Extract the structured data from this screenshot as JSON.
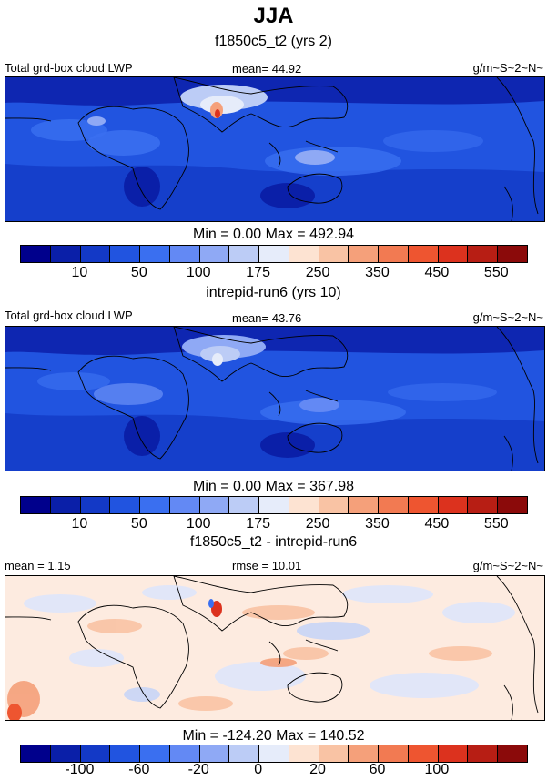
{
  "figure": {
    "title": "JJA"
  },
  "chart_data": [
    {
      "type": "heatmap",
      "title": "f1850c5_t2 (yrs 2)",
      "left_label": "Total grd-box cloud LWP",
      "center_label": "mean=  44.92",
      "right_label": "g/m~S~2~N~",
      "minmax": "Min =   0.00 Max = 492.94",
      "colorbar": {
        "colors": [
          "#00008c",
          "#0a1fa8",
          "#1339c6",
          "#2154e0",
          "#3a6ff0",
          "#6389f4",
          "#8fa9f5",
          "#bcccf6",
          "#e6ecfa",
          "#fde3d2",
          "#f9c3a4",
          "#f5a07a",
          "#f27a52",
          "#ee5530",
          "#dc321e",
          "#b71e14",
          "#8b0a0a"
        ],
        "tick_labels": [
          "10",
          "50",
          "100",
          "175",
          "250",
          "350",
          "450",
          "550"
        ]
      }
    },
    {
      "type": "heatmap",
      "title": "intrepid-run6 (yrs 10)",
      "left_label": "Total grd-box cloud LWP",
      "center_label": "mean=  43.76",
      "right_label": "g/m~S~2~N~",
      "minmax": "Min =   0.00 Max = 367.98",
      "colorbar": {
        "colors": [
          "#00008c",
          "#0a1fa8",
          "#1339c6",
          "#2154e0",
          "#3a6ff0",
          "#6389f4",
          "#8fa9f5",
          "#bcccf6",
          "#e6ecfa",
          "#fde3d2",
          "#f9c3a4",
          "#f5a07a",
          "#f27a52",
          "#ee5530",
          "#dc321e",
          "#b71e14",
          "#8b0a0a"
        ],
        "tick_labels": [
          "10",
          "50",
          "100",
          "175",
          "250",
          "350",
          "450",
          "550"
        ]
      }
    },
    {
      "type": "heatmap",
      "title": "f1850c5_t2 - intrepid-run6",
      "left_label": "mean =   1.15",
      "center_label": "rmse =  10.01",
      "right_label": "g/m~S~2~N~",
      "minmax": "Min = -124.20 Max = 140.52",
      "colorbar": {
        "colors": [
          "#00008c",
          "#0a1fa8",
          "#1339c6",
          "#2154e0",
          "#3a6ff0",
          "#6389f4",
          "#8fa9f5",
          "#bcccf6",
          "#e6ecfa",
          "#fde3d2",
          "#f9c3a4",
          "#f5a07a",
          "#f27a52",
          "#ee5530",
          "#dc321e",
          "#b71e14",
          "#8b0a0a"
        ],
        "tick_labels": [
          "-100",
          "-60",
          "-20",
          "0",
          "20",
          "60",
          "100"
        ]
      }
    }
  ]
}
